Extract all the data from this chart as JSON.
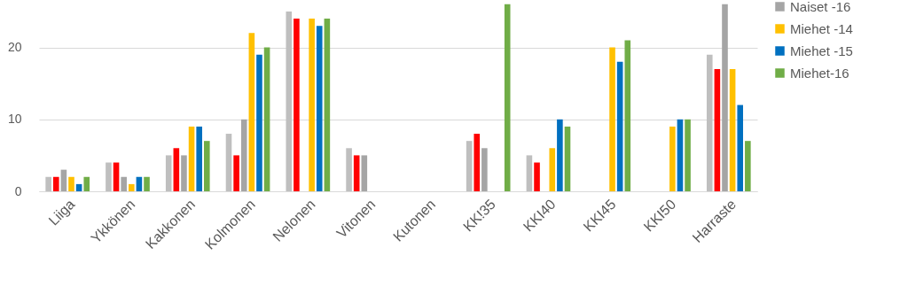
{
  "chart_data": {
    "type": "bar",
    "categories": [
      "Liiga",
      "Ykkönen",
      "Kakkonen",
      "Kolmonen",
      "Nelonen",
      "Vitonen",
      "Kutonen",
      "KK!35",
      "KKI40",
      "KKI45",
      "KKI50",
      "Harraste"
    ],
    "series": [
      {
        "color": "#bfbfbf",
        "values": [
          2,
          4,
          5,
          8,
          25,
          6,
          null,
          7,
          5,
          null,
          null,
          19
        ]
      },
      {
        "color": "#ff0000",
        "values": [
          2,
          4,
          6,
          5,
          24,
          5,
          null,
          8,
          4,
          null,
          null,
          17
        ]
      },
      {
        "name": "Naiset -16",
        "color": "#a5a5a5",
        "values": [
          3,
          2,
          5,
          10,
          null,
          5,
          null,
          6,
          null,
          null,
          null,
          26
        ]
      },
      {
        "name": "Miehet -14",
        "color": "#ffc000",
        "values": [
          2,
          1,
          9,
          22,
          24,
          null,
          null,
          null,
          6,
          20,
          9,
          17
        ]
      },
      {
        "name": "Miehet -15",
        "color": "#0070c0",
        "values": [
          1,
          2,
          9,
          19,
          23,
          null,
          null,
          null,
          10,
          18,
          10,
          12
        ]
      },
      {
        "name": "Miehet-16",
        "color": "#70ad47",
        "values": [
          2,
          2,
          7,
          20,
          24,
          null,
          null,
          26,
          9,
          21,
          10,
          7
        ]
      }
    ],
    "ylim": [
      0,
      26.6
    ],
    "yticks": [
      0,
      10,
      20
    ],
    "grid": "y",
    "legend": "right"
  }
}
